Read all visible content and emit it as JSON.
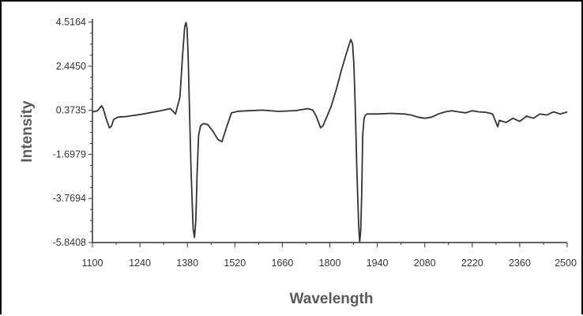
{
  "chart_data": {
    "type": "line",
    "title": "",
    "xlabel": "Wavelength",
    "ylabel": "Intensity",
    "xlim": [
      1100,
      2500
    ],
    "ylim": [
      -5.8408,
      4.5164
    ],
    "x_ticks": [
      "1100",
      "1240",
      "1380",
      "1520",
      "1660",
      "1800",
      "1940",
      "2080",
      "2220",
      "2360",
      "2500"
    ],
    "y_ticks": [
      "4.5164",
      "2.4450",
      "0.3735",
      "-1.6979",
      "-3.7694",
      "-5.8408"
    ],
    "grid": false,
    "legend": "none",
    "line_color": "#333333",
    "series": [
      {
        "x": [
          1100,
          1115,
          1127,
          1132,
          1140,
          1150,
          1156,
          1163,
          1175,
          1200,
          1250,
          1300,
          1330,
          1345,
          1358,
          1366,
          1372,
          1376,
          1379,
          1382,
          1386,
          1391,
          1397,
          1401,
          1405,
          1409,
          1413,
          1419,
          1428,
          1440,
          1455,
          1470,
          1482,
          1490,
          1498,
          1510,
          1530,
          1560,
          1600,
          1650,
          1700,
          1735,
          1750,
          1760,
          1768,
          1773,
          1780,
          1792,
          1805,
          1820,
          1835,
          1848,
          1856,
          1862,
          1867,
          1871,
          1875,
          1880,
          1885,
          1888,
          1891,
          1894,
          1897,
          1901,
          1905,
          1910,
          1920,
          1940,
          1980,
          2020,
          2040,
          2060,
          2080,
          2100,
          2120,
          2140,
          2160,
          2180,
          2200,
          2220,
          2240,
          2260,
          2280,
          2290,
          2295,
          2300,
          2320,
          2340,
          2360,
          2380,
          2400,
          2420,
          2440,
          2460,
          2480,
          2500
        ],
        "y": [
          0.3,
          0.35,
          0.58,
          0.45,
          0.0,
          -0.45,
          -0.38,
          -0.05,
          0.05,
          0.08,
          0.2,
          0.35,
          0.45,
          0.2,
          1.0,
          3.0,
          4.3,
          4.5,
          4.2,
          3.0,
          0.5,
          -2.5,
          -5.2,
          -5.6,
          -4.8,
          -2.5,
          -0.8,
          -0.35,
          -0.25,
          -0.3,
          -0.6,
          -1.0,
          -1.1,
          -0.7,
          -0.3,
          0.25,
          0.33,
          0.35,
          0.38,
          0.32,
          0.36,
          0.45,
          0.38,
          0.1,
          -0.25,
          -0.45,
          -0.35,
          0.1,
          0.6,
          1.4,
          2.3,
          3.0,
          3.4,
          3.7,
          3.5,
          2.5,
          0.5,
          -2.5,
          -5.0,
          -5.8,
          -5.3,
          -3.5,
          -0.8,
          0.0,
          0.15,
          0.2,
          0.2,
          0.2,
          0.23,
          0.2,
          0.15,
          0.05,
          0.0,
          0.05,
          0.2,
          0.3,
          0.35,
          0.3,
          0.25,
          0.35,
          0.3,
          0.28,
          0.2,
          -0.2,
          -0.4,
          -0.1,
          -0.2,
          0.0,
          -0.15,
          0.1,
          0.0,
          0.2,
          0.15,
          0.3,
          0.2,
          0.3
        ]
      }
    ]
  }
}
